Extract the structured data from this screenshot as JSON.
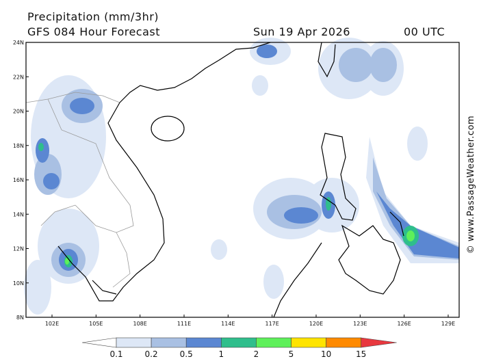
{
  "header": {
    "title": "Precipitation (mm/3hr)",
    "subtitle": "GFS 084 Hour Forecast",
    "date": "Sun 19 Apr 2026",
    "time": "00 UTC"
  },
  "map": {
    "lat_labels": [
      "24N",
      "22N",
      "20N",
      "18N",
      "16N",
      "14N",
      "12N",
      "10N",
      "8N"
    ],
    "lon_labels": [
      "102E",
      "105E",
      "108E",
      "111E",
      "114E",
      "117E",
      "120E",
      "123E",
      "126E",
      "129E"
    ]
  },
  "colorbar": {
    "labels": [
      "0.1",
      "0.2",
      "0.5",
      "1",
      "2",
      "5",
      "10",
      "15"
    ],
    "colors": [
      "#ffffff",
      "#dde7f6",
      "#a9c0e3",
      "#5b87d2",
      "#2fbe8c",
      "#5ef05a",
      "#ffe400",
      "#ff8a00",
      "#e8383f"
    ]
  },
  "watermark": "© www.PassageWeather.com"
}
